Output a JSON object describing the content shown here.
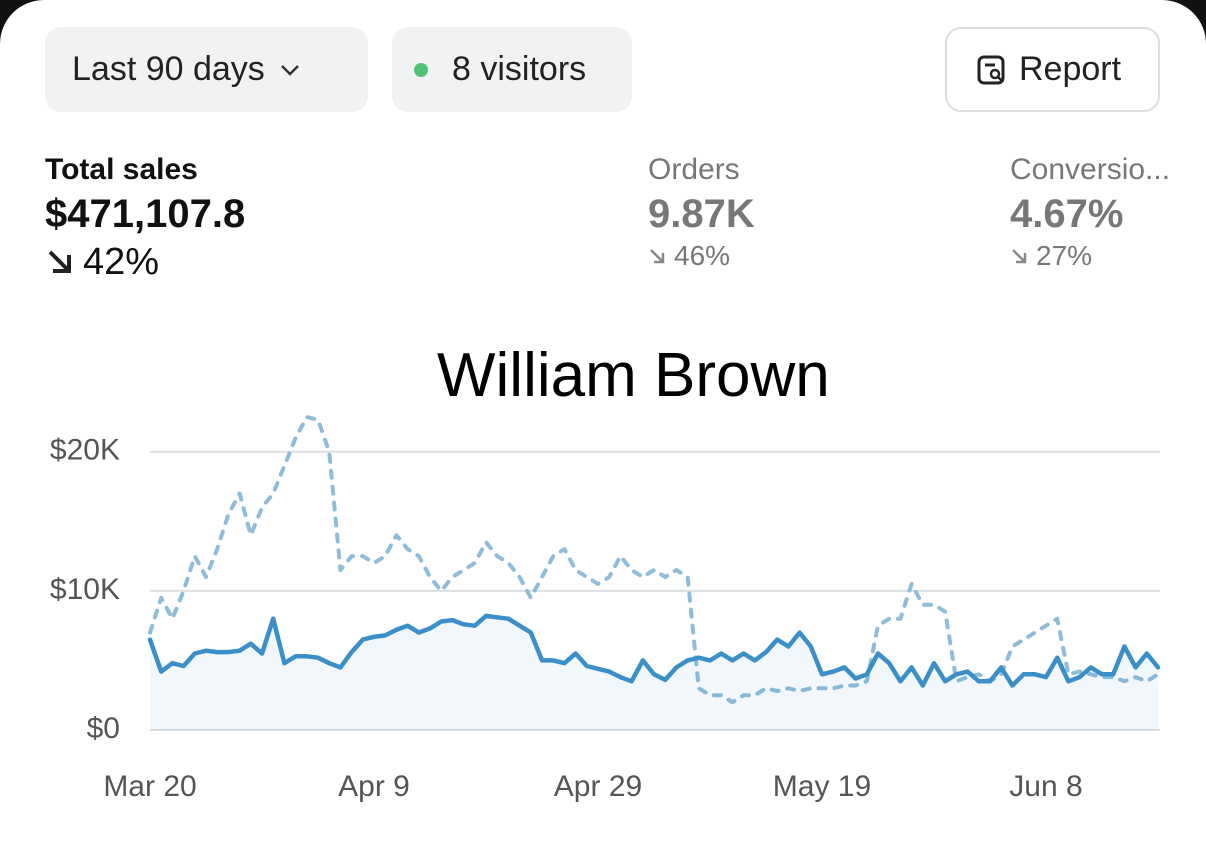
{
  "toolbar": {
    "range": "Last 90 days",
    "visitors": "8 visitors",
    "report": "Report"
  },
  "metrics": [
    {
      "label": "Total sales",
      "value": "$471,107.8",
      "change": "42%"
    },
    {
      "label": "Orders",
      "value": "9.87K",
      "change": "46%"
    },
    {
      "label": "Conversio...",
      "value": "4.67%",
      "change": "27%"
    }
  ],
  "watermark": "William Brown",
  "chart_data": {
    "type": "line",
    "categories": [
      "Mar 20",
      null,
      null,
      null,
      null,
      null,
      null,
      null,
      null,
      null,
      null,
      null,
      null,
      null,
      null,
      null,
      null,
      null,
      null,
      null,
      "Apr 9",
      null,
      null,
      null,
      null,
      null,
      null,
      null,
      null,
      null,
      null,
      null,
      null,
      null,
      null,
      null,
      null,
      null,
      null,
      null,
      "Apr 29",
      null,
      null,
      null,
      null,
      null,
      null,
      null,
      null,
      null,
      null,
      null,
      null,
      null,
      null,
      null,
      null,
      null,
      null,
      null,
      "May 19",
      null,
      null,
      null,
      null,
      null,
      null,
      null,
      null,
      null,
      null,
      null,
      null,
      null,
      null,
      null,
      null,
      null,
      null,
      null,
      "Jun 8",
      null,
      null,
      null,
      null,
      null,
      null,
      null,
      null,
      null,
      null
    ],
    "series": [
      {
        "color": "#3b8fc9",
        "line_style": "solid",
        "area": true,
        "values": [
          6500,
          4200,
          4800,
          4600,
          5500,
          5700,
          5600,
          5600,
          5700,
          6200,
          5500,
          8000,
          4800,
          5300,
          5300,
          5200,
          4800,
          4500,
          5600,
          6500,
          6700,
          6800,
          7200,
          7500,
          7000,
          7300,
          7800,
          7900,
          7600,
          7500,
          8200,
          8100,
          8000,
          7500,
          7000,
          5000,
          5000,
          4800,
          5500,
          4600,
          4400,
          4200,
          3800,
          3500,
          5000,
          4000,
          3600,
          4500,
          5000,
          5200,
          5000,
          5500,
          5000,
          5500,
          5000,
          5600,
          6500,
          6000,
          7000,
          6000,
          4000,
          4200,
          4500,
          3700,
          4000,
          5500,
          4800,
          3500,
          4500,
          3200,
          4800,
          3500,
          4000,
          4200,
          3500,
          3500,
          4500,
          3200,
          4000,
          4000,
          3800,
          5200,
          3500,
          3800,
          4500,
          4000,
          4000,
          6000,
          4500,
          5500,
          4500
        ]
      },
      {
        "color": "#8ebcd9",
        "line_style": "dashed",
        "area": false,
        "values": [
          7000,
          9500,
          8000,
          10000,
          12500,
          11000,
          13000,
          15500,
          17000,
          14000,
          16000,
          17000,
          19000,
          21000,
          22500,
          22300,
          20000,
          11500,
          12500,
          12500,
          12000,
          12500,
          14000,
          13000,
          12500,
          11000,
          10000,
          11000,
          11500,
          12000,
          13500,
          12500,
          12000,
          11000,
          9500,
          11000,
          12500,
          13000,
          11500,
          11000,
          10500,
          11000,
          12500,
          11500,
          11000,
          11500,
          11000,
          11500,
          11000,
          3000,
          2500,
          2500,
          2000,
          2500,
          2500,
          3000,
          2800,
          3000,
          2800,
          3000,
          3000,
          3000,
          3200,
          3200,
          3500,
          7500,
          8000,
          8000,
          10500,
          9000,
          9000,
          8500,
          3500,
          3800,
          4000,
          3500,
          4000,
          6000,
          6500,
          7000,
          7500,
          8000,
          4000,
          4200,
          4000,
          3800,
          3800,
          3500,
          3800,
          3500,
          4000
        ]
      }
    ],
    "ylim": [
      0,
      23000
    ],
    "yticks": [
      {
        "value": 0,
        "label": "$0"
      },
      {
        "value": 10000,
        "label": "$10K"
      },
      {
        "value": 20000,
        "label": "$20K"
      }
    ],
    "grid": true
  }
}
